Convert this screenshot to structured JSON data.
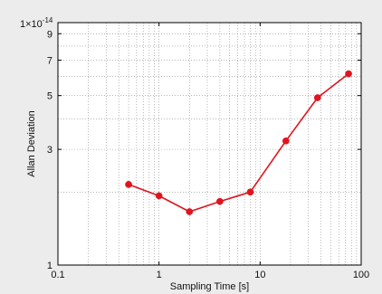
{
  "chart_data": {
    "type": "line",
    "xlabel": "Sampling Time [s]",
    "ylabel": "Allan Deviation",
    "xscale": "log",
    "yscale": "log",
    "xlim": [
      0.1,
      100
    ],
    "ylim": [
      1,
      10
    ],
    "grid": "dotted major and minor",
    "multiplier_base": "1×10",
    "multiplier_exponent": "-14",
    "x_ticks": [
      {
        "value": 0.1,
        "label": "0.1"
      },
      {
        "value": 1,
        "label": "1"
      },
      {
        "value": 10,
        "label": "10"
      },
      {
        "value": 100,
        "label": "100"
      }
    ],
    "y_ticks": [
      {
        "value": 1,
        "label": "1"
      },
      {
        "value": 3,
        "label": "3"
      },
      {
        "value": 5,
        "label": "5"
      },
      {
        "value": 7,
        "label": "7"
      },
      {
        "value": 9,
        "label": "9"
      }
    ],
    "series": [
      {
        "color": "#e0141e",
        "marker": "circle",
        "x": [
          0.5,
          1,
          2,
          4,
          8,
          18,
          37,
          75
        ],
        "y": [
          2.15,
          1.93,
          1.66,
          1.83,
          2.0,
          3.25,
          4.9,
          6.15
        ]
      }
    ]
  }
}
